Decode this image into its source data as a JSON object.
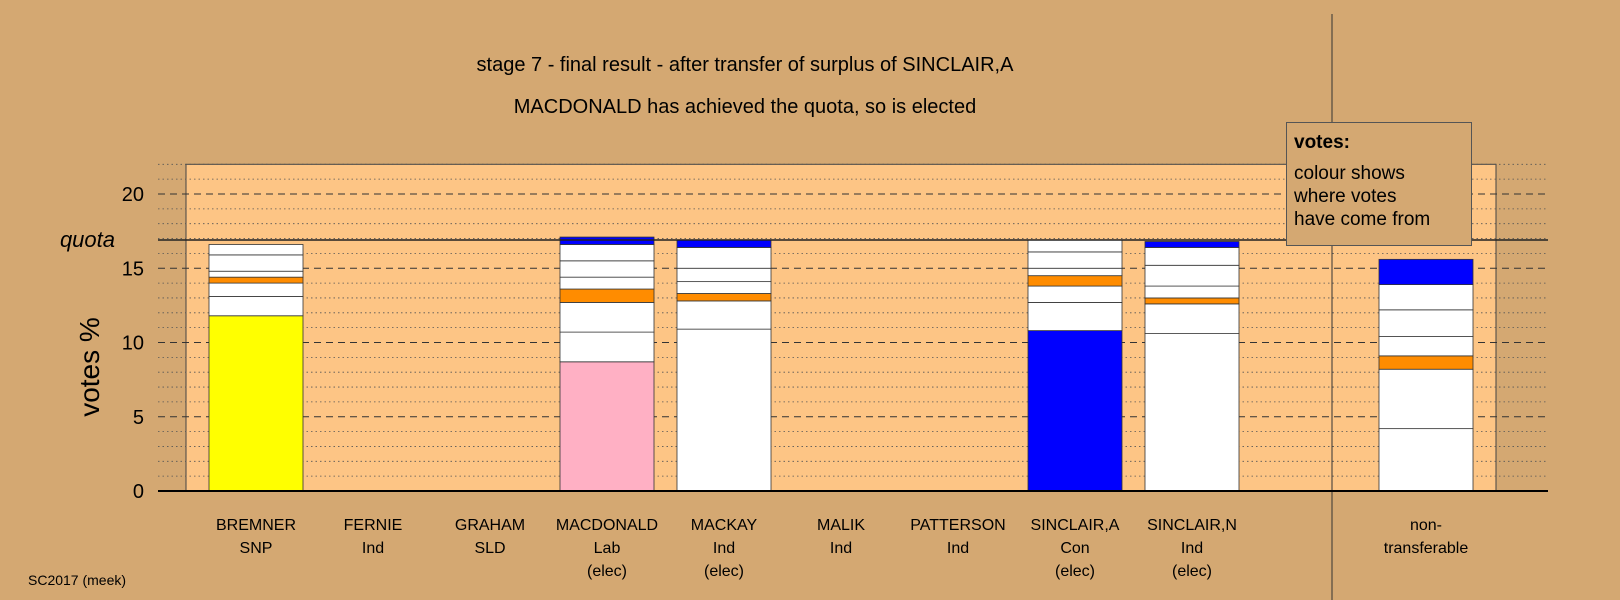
{
  "header": {
    "title": "stage 7 - final result - after transfer of surplus of SINCLAIR,A",
    "subtitle": "MACDONALD has achieved the quota, so is elected"
  },
  "legend": {
    "title": "votes:",
    "text": "colour shows\nwhere votes\nhave come from"
  },
  "footer": "SC2017 (meek)",
  "chart_data": {
    "type": "bar",
    "stacked": true,
    "ylabel": "votes %",
    "ylim": [
      0,
      22
    ],
    "yticks": [
      0,
      5,
      10,
      15,
      20
    ],
    "quota": 16.9,
    "quota_label": "quota",
    "grid": "dashed major every 5, dotted minor every 1",
    "colors": {
      "background": "#d4a872",
      "plot_area": "#fdc585",
      "SNP": "#ffff00",
      "Lab": "#ffb0c4",
      "Ind": "#ffffff",
      "Con": "#0000ff",
      "SLD": "#ff8c00"
    },
    "candidates": [
      {
        "name": "BREMNER",
        "party": "SNP",
        "status": "",
        "segments": [
          {
            "value": 11.8,
            "color": "#ffff00"
          },
          {
            "value": 1.3,
            "color": "#ffffff"
          },
          {
            "value": 0.9,
            "color": "#ffffff"
          },
          {
            "value": 0.4,
            "color": "#ff8c00"
          },
          {
            "value": 0.4,
            "color": "#ffffff"
          },
          {
            "value": 1.1,
            "color": "#ffffff"
          },
          {
            "value": 0.7,
            "color": "#ffffff"
          }
        ]
      },
      {
        "name": "FERNIE",
        "party": "Ind",
        "status": "",
        "segments": []
      },
      {
        "name": "GRAHAM",
        "party": "SLD",
        "status": "",
        "segments": []
      },
      {
        "name": "MACDONALD",
        "party": "Lab",
        "status": "(elec)",
        "segments": [
          {
            "value": 8.7,
            "color": "#ffb0c4"
          },
          {
            "value": 2.0,
            "color": "#ffffff"
          },
          {
            "value": 2.0,
            "color": "#ffffff"
          },
          {
            "value": 0.9,
            "color": "#ff8c00"
          },
          {
            "value": 0.8,
            "color": "#ffffff"
          },
          {
            "value": 1.1,
            "color": "#ffffff"
          },
          {
            "value": 1.1,
            "color": "#ffffff"
          },
          {
            "value": 0.5,
            "color": "#0000ff"
          }
        ]
      },
      {
        "name": "MACKAY",
        "party": "Ind",
        "status": "(elec)",
        "segments": [
          {
            "value": 10.9,
            "color": "#ffffff"
          },
          {
            "value": 1.9,
            "color": "#ffffff"
          },
          {
            "value": 0.5,
            "color": "#ff8c00"
          },
          {
            "value": 0.8,
            "color": "#ffffff"
          },
          {
            "value": 0.9,
            "color": "#ffffff"
          },
          {
            "value": 1.4,
            "color": "#ffffff"
          },
          {
            "value": 0.5,
            "color": "#0000ff"
          }
        ]
      },
      {
        "name": "MALIK",
        "party": "Ind",
        "status": "",
        "segments": []
      },
      {
        "name": "PATTERSON",
        "party": "Ind",
        "status": "",
        "segments": []
      },
      {
        "name": "SINCLAIR,A",
        "party": "Con",
        "status": "(elec)",
        "segments": [
          {
            "value": 10.8,
            "color": "#0000ff"
          },
          {
            "value": 1.9,
            "color": "#ffffff"
          },
          {
            "value": 1.1,
            "color": "#ffffff"
          },
          {
            "value": 0.7,
            "color": "#ff8c00"
          },
          {
            "value": 0.5,
            "color": "#ffffff"
          },
          {
            "value": 1.1,
            "color": "#ffffff"
          },
          {
            "value": 0.8,
            "color": "#ffffff"
          }
        ]
      },
      {
        "name": "SINCLAIR,N",
        "party": "Ind",
        "status": "(elec)",
        "segments": [
          {
            "value": 10.6,
            "color": "#ffffff"
          },
          {
            "value": 2.0,
            "color": "#ffffff"
          },
          {
            "value": 0.4,
            "color": "#ff8c00"
          },
          {
            "value": 0.8,
            "color": "#ffffff"
          },
          {
            "value": 1.4,
            "color": "#ffffff"
          },
          {
            "value": 1.2,
            "color": "#ffffff"
          },
          {
            "value": 0.4,
            "color": "#0000ff"
          }
        ]
      },
      {
        "name": "non-",
        "party": "transferable",
        "status": "",
        "segments": [
          {
            "value": 4.2,
            "color": "#ffffff"
          },
          {
            "value": 4.0,
            "color": "#ffffff"
          },
          {
            "value": 0.9,
            "color": "#ff8c00"
          },
          {
            "value": 1.3,
            "color": "#ffffff"
          },
          {
            "value": 1.8,
            "color": "#ffffff"
          },
          {
            "value": 1.7,
            "color": "#ffffff"
          },
          {
            "value": 1.7,
            "color": "#0000ff"
          }
        ]
      }
    ]
  }
}
